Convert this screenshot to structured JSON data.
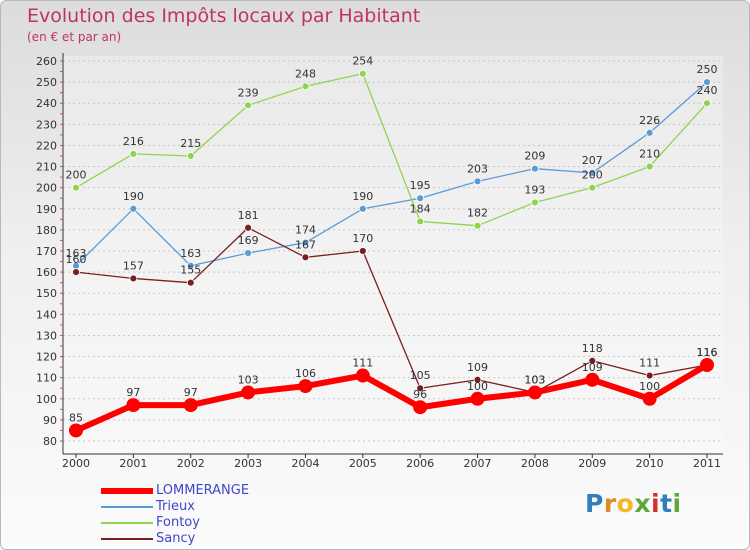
{
  "chart_data": {
    "type": "line",
    "title": "Evolution des Impôts locaux par Habitant",
    "subtitle": "(en € et par an)",
    "categories": [
      "2000",
      "2001",
      "2002",
      "2003",
      "2004",
      "2005",
      "2006",
      "2007",
      "2008",
      "2009",
      "2010",
      "2011"
    ],
    "ylim": [
      80,
      260
    ],
    "yticks": [
      80,
      90,
      100,
      110,
      120,
      130,
      140,
      150,
      160,
      170,
      180,
      190,
      200,
      210,
      220,
      230,
      240,
      250,
      260
    ],
    "grid": "horizontal-dashed",
    "legend_position": "bottom-left",
    "series": [
      {
        "name": "LOMMERANGE",
        "color": "#ff0000",
        "values": [
          85,
          97,
          97,
          103,
          106,
          111,
          96,
          100,
          103,
          109,
          100,
          116
        ]
      },
      {
        "name": "Trieux",
        "color": "#5b9bd5",
        "values": [
          163,
          190,
          163,
          169,
          174,
          190,
          195,
          203,
          209,
          207,
          226,
          250
        ]
      },
      {
        "name": "Fontoy",
        "color": "#8fd44f",
        "values": [
          200,
          216,
          215,
          239,
          248,
          254,
          184,
          182,
          193,
          200,
          210,
          240
        ]
      },
      {
        "name": "Sancy",
        "color": "#7a1f1f",
        "values": [
          160,
          157,
          155,
          181,
          167,
          170,
          105,
          109,
          103,
          118,
          111,
          116
        ]
      }
    ]
  },
  "brand": {
    "letters": [
      "P",
      "r",
      "o",
      "x",
      "i",
      "t",
      "i"
    ],
    "colors": [
      "#2f7ec0",
      "#e0882a",
      "#f2b827",
      "#5ca83a",
      "#d2322d",
      "#2f7ec0",
      "#5ca83a"
    ]
  }
}
